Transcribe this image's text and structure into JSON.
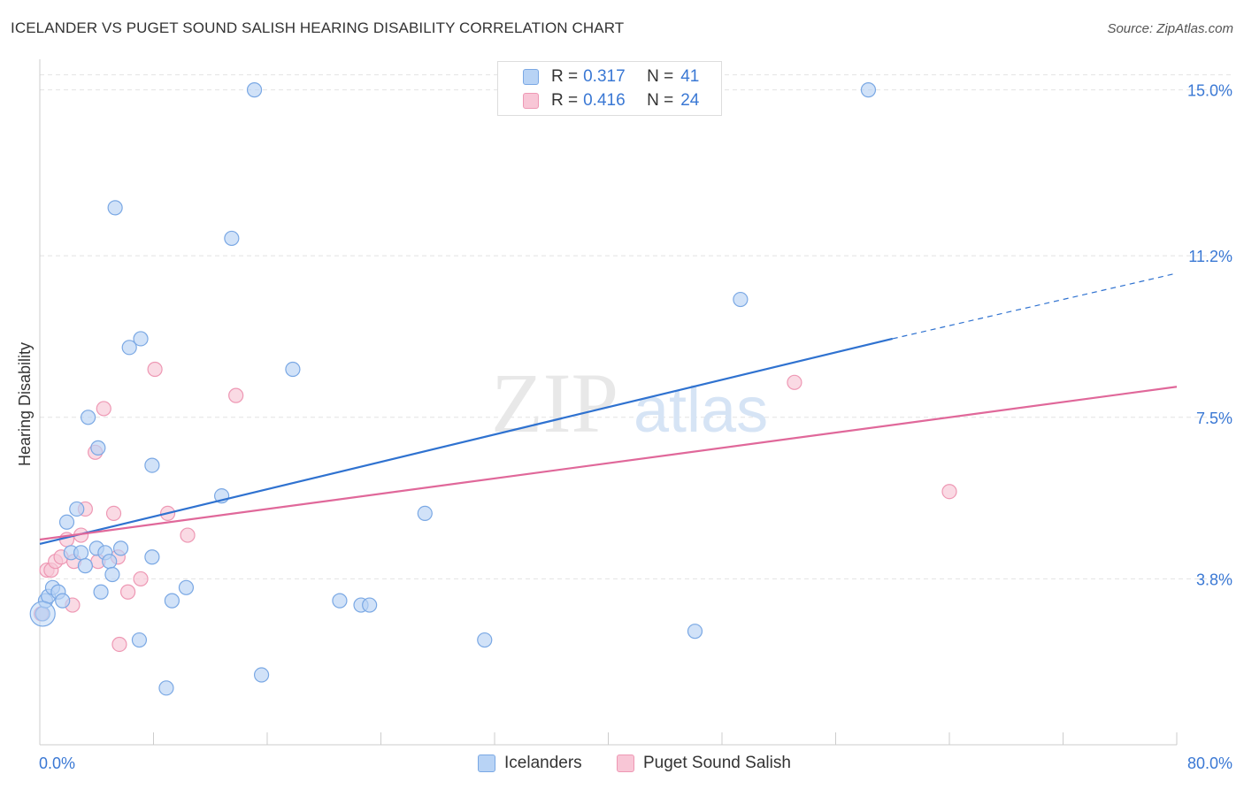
{
  "title": "ICELANDER VS PUGET SOUND SALISH HEARING DISABILITY CORRELATION CHART",
  "source": "Source: ZipAtlas.com",
  "watermark": {
    "zip": "ZIP",
    "atlas": "atlas"
  },
  "legend": {
    "r_label": "R =",
    "n_label": "N =",
    "rows": [
      {
        "name": "Icelanders",
        "r": "0.317",
        "n": "41"
      },
      {
        "name": "Puget Sound Salish",
        "r": "0.416",
        "n": "24"
      }
    ]
  },
  "colors": {
    "blue_fill": "#b8d3f5",
    "blue_stroke": "#7aa8e4",
    "blue_line": "#2f72d0",
    "pink_fill": "#f8c6d6",
    "pink_stroke": "#ee98b4",
    "pink_line": "#e0689a",
    "grid": "#e2e2e2",
    "tick_text": "#3a78d4"
  },
  "chart_data": {
    "type": "scatter",
    "title": "ICELANDER VS PUGET SOUND SALISH HEARING DISABILITY CORRELATION CHART",
    "xlabel": "",
    "ylabel": "Hearing Disability",
    "xlim": [
      0,
      80
    ],
    "ylim": [
      0,
      15.6
    ],
    "x_tick_labels": [
      "0.0%",
      "80.0%"
    ],
    "y_ticks": [
      3.8,
      7.5,
      11.2,
      15.0
    ],
    "y_tick_labels": [
      "3.8%",
      "7.5%",
      "11.2%",
      "15.0%"
    ],
    "series": [
      {
        "name": "Icelanders",
        "points": [
          [
            0.2,
            3.0
          ],
          [
            0.4,
            3.3
          ],
          [
            0.6,
            3.4
          ],
          [
            0.9,
            3.6
          ],
          [
            1.3,
            3.5
          ],
          [
            1.6,
            3.3
          ],
          [
            1.9,
            5.1
          ],
          [
            2.2,
            4.4
          ],
          [
            2.6,
            5.4
          ],
          [
            2.9,
            4.4
          ],
          [
            3.2,
            4.1
          ],
          [
            3.4,
            7.5
          ],
          [
            4.0,
            4.5
          ],
          [
            4.1,
            6.8
          ],
          [
            4.3,
            3.5
          ],
          [
            4.6,
            4.4
          ],
          [
            4.9,
            4.2
          ],
          [
            5.1,
            3.9
          ],
          [
            5.3,
            12.3
          ],
          [
            5.7,
            4.5
          ],
          [
            6.3,
            9.1
          ],
          [
            7.0,
            2.4
          ],
          [
            7.1,
            9.3
          ],
          [
            7.9,
            4.3
          ],
          [
            7.9,
            6.4
          ],
          [
            8.9,
            1.3
          ],
          [
            9.3,
            3.3
          ],
          [
            10.3,
            3.6
          ],
          [
            12.8,
            5.7
          ],
          [
            13.5,
            11.6
          ],
          [
            15.1,
            15.0
          ],
          [
            15.6,
            1.6
          ],
          [
            17.8,
            8.6
          ],
          [
            21.1,
            3.3
          ],
          [
            22.6,
            3.2
          ],
          [
            23.2,
            3.2
          ],
          [
            27.1,
            5.3
          ],
          [
            31.3,
            2.4
          ],
          [
            46.1,
            2.6
          ],
          [
            49.3,
            10.2
          ],
          [
            58.3,
            15.0
          ]
        ],
        "trend": {
          "x0": 0.0,
          "y0": 4.6,
          "x1": 60.0,
          "y1": 9.3,
          "dashed_to": [
            80.0,
            10.8
          ]
        }
      },
      {
        "name": "Puget Sound Salish",
        "points": [
          [
            0.1,
            3.0
          ],
          [
            0.5,
            4.0
          ],
          [
            0.8,
            4.0
          ],
          [
            1.1,
            4.2
          ],
          [
            1.5,
            4.3
          ],
          [
            1.9,
            4.7
          ],
          [
            2.3,
            3.2
          ],
          [
            2.4,
            4.2
          ],
          [
            2.9,
            4.8
          ],
          [
            3.2,
            5.4
          ],
          [
            3.9,
            6.7
          ],
          [
            4.1,
            4.2
          ],
          [
            4.5,
            7.7
          ],
          [
            5.2,
            5.3
          ],
          [
            5.5,
            4.3
          ],
          [
            5.6,
            2.3
          ],
          [
            6.2,
            3.5
          ],
          [
            7.1,
            3.8
          ],
          [
            8.1,
            8.6
          ],
          [
            9.0,
            5.3
          ],
          [
            10.4,
            4.8
          ],
          [
            13.8,
            8.0
          ],
          [
            53.1,
            8.3
          ],
          [
            64.0,
            5.8
          ]
        ],
        "trend": {
          "x0": 0.0,
          "y0": 4.7,
          "x1": 80.0,
          "y1": 8.2
        }
      }
    ],
    "legend_position": "top-center"
  }
}
